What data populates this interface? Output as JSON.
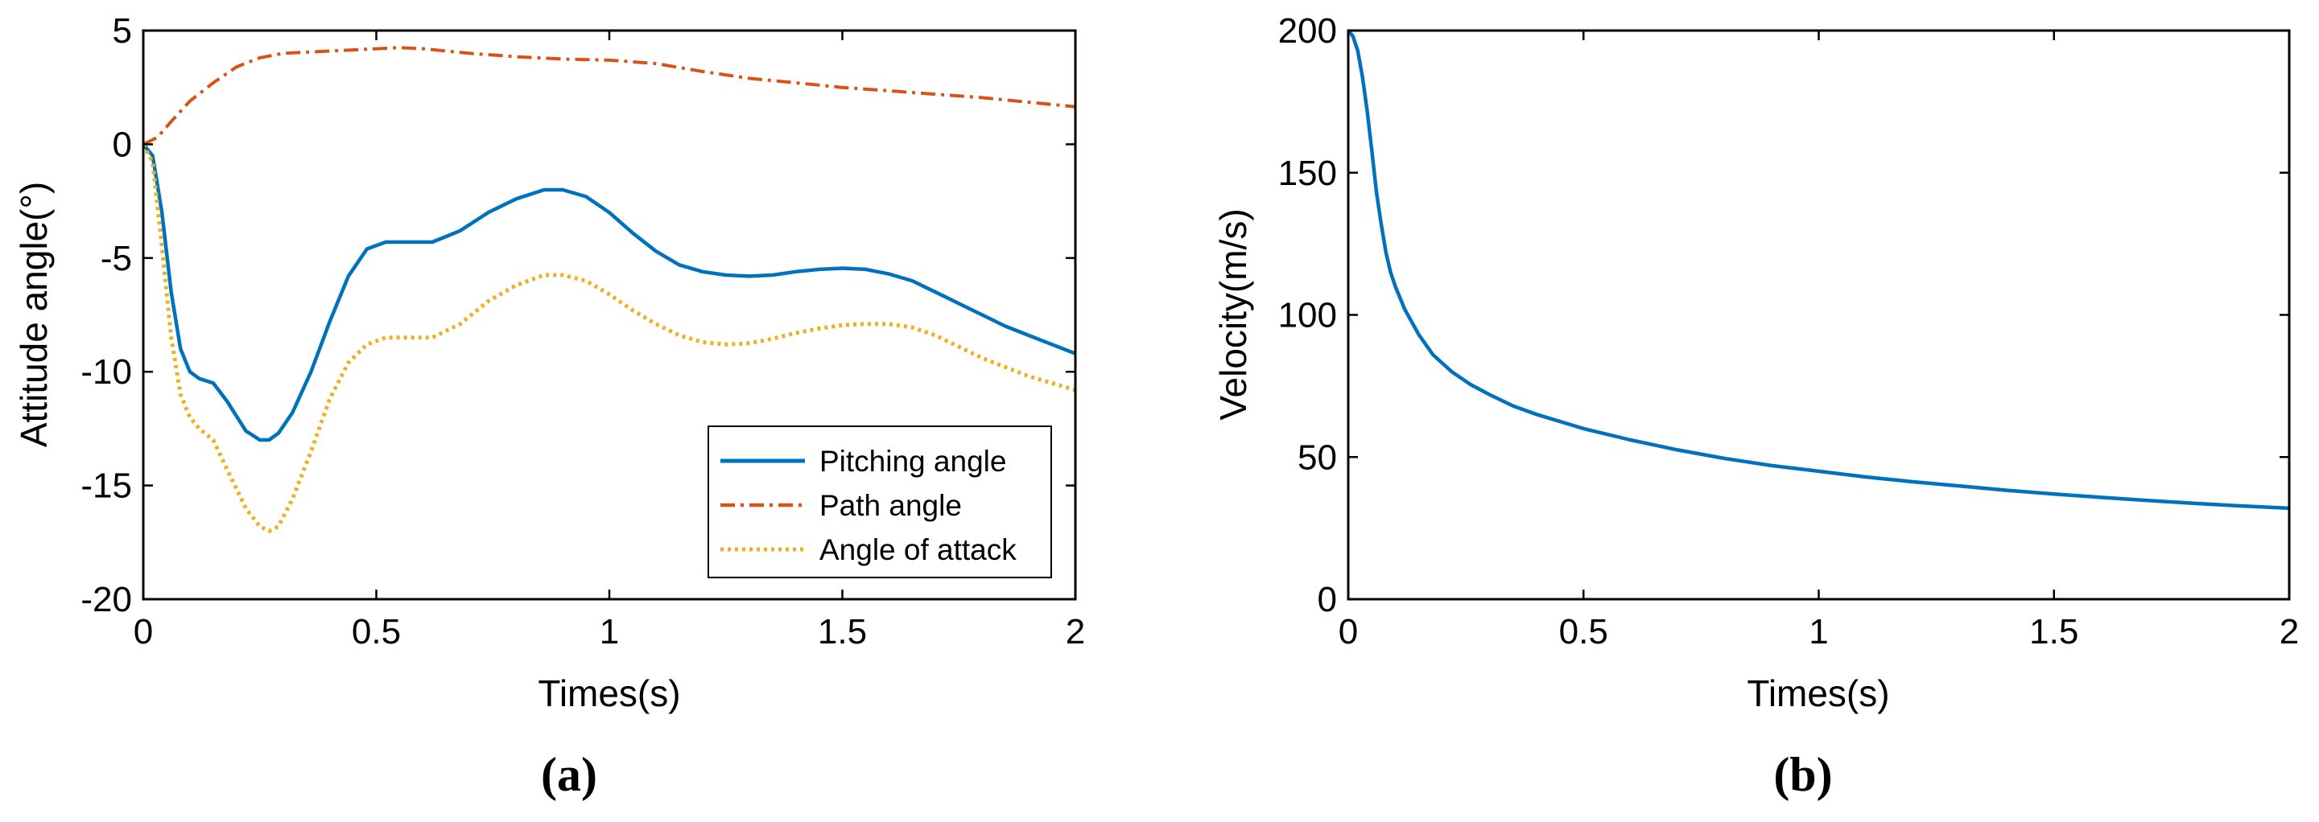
{
  "colors": {
    "pitching": "#0072BD",
    "path": "#D95319",
    "attack": "#EDB120",
    "velocity": "#0072BD",
    "axis": "#000000"
  },
  "chart_data": [
    {
      "type": "line",
      "caption": "(a)",
      "xlabel": "Times(s)",
      "ylabel": "Attitude angle(°)",
      "xlim": [
        0,
        2
      ],
      "ylim": [
        -20,
        5
      ],
      "xticks": [
        0,
        0.5,
        1,
        1.5,
        2
      ],
      "xtick_labels": [
        "0",
        "0.5",
        "1",
        "1.5",
        "2"
      ],
      "yticks": [
        -20,
        -15,
        -10,
        -5,
        0,
        5
      ],
      "ytick_labels": [
        "-20",
        "-15",
        "-10",
        "-5",
        "0",
        "5"
      ],
      "grid": false,
      "legend_position": "bottom-right",
      "series": [
        {
          "name": "Pitching angle",
          "style": "solid",
          "color_key": "pitching",
          "x": [
            0,
            0.02,
            0.04,
            0.06,
            0.08,
            0.1,
            0.12,
            0.15,
            0.18,
            0.22,
            0.25,
            0.27,
            0.29,
            0.32,
            0.36,
            0.4,
            0.44,
            0.48,
            0.52,
            0.56,
            0.62,
            0.68,
            0.74,
            0.8,
            0.86,
            0.9,
            0.95,
            1.0,
            1.05,
            1.1,
            1.15,
            1.2,
            1.25,
            1.3,
            1.35,
            1.4,
            1.45,
            1.5,
            1.55,
            1.6,
            1.65,
            1.7,
            1.75,
            1.8,
            1.85,
            1.9,
            1.95,
            2.0
          ],
          "y": [
            0,
            -0.5,
            -3.0,
            -6.5,
            -9.0,
            -10.0,
            -10.3,
            -10.5,
            -11.3,
            -12.6,
            -13.0,
            -13.0,
            -12.7,
            -11.8,
            -10.0,
            -7.8,
            -5.8,
            -4.6,
            -4.3,
            -4.3,
            -4.3,
            -3.8,
            -3.0,
            -2.4,
            -2.0,
            -2.0,
            -2.3,
            -3.0,
            -3.9,
            -4.7,
            -5.3,
            -5.6,
            -5.75,
            -5.8,
            -5.75,
            -5.6,
            -5.5,
            -5.45,
            -5.5,
            -5.7,
            -6.0,
            -6.5,
            -7.0,
            -7.5,
            -8.0,
            -8.4,
            -8.8,
            -9.2
          ]
        },
        {
          "name": "Path angle",
          "style": "dashdot",
          "color_key": "path",
          "x": [
            0,
            0.03,
            0.06,
            0.1,
            0.15,
            0.2,
            0.25,
            0.3,
            0.35,
            0.4,
            0.5,
            0.55,
            0.6,
            0.7,
            0.8,
            0.9,
            1.0,
            1.1,
            1.2,
            1.3,
            1.4,
            1.5,
            1.6,
            1.7,
            1.8,
            1.9,
            2.0
          ],
          "y": [
            0,
            0.3,
            1.0,
            1.9,
            2.7,
            3.4,
            3.8,
            4.0,
            4.05,
            4.1,
            4.2,
            4.25,
            4.2,
            4.0,
            3.85,
            3.75,
            3.7,
            3.55,
            3.2,
            2.9,
            2.7,
            2.5,
            2.35,
            2.2,
            2.05,
            1.85,
            1.65
          ]
        },
        {
          "name": "Angle of attack",
          "style": "dotted",
          "color_key": "attack",
          "x": [
            0,
            0.02,
            0.04,
            0.06,
            0.08,
            0.1,
            0.12,
            0.15,
            0.18,
            0.22,
            0.25,
            0.27,
            0.29,
            0.32,
            0.36,
            0.4,
            0.44,
            0.48,
            0.52,
            0.56,
            0.62,
            0.68,
            0.74,
            0.8,
            0.86,
            0.9,
            0.95,
            1.0,
            1.05,
            1.1,
            1.15,
            1.2,
            1.25,
            1.3,
            1.35,
            1.4,
            1.45,
            1.5,
            1.55,
            1.6,
            1.65,
            1.7,
            1.75,
            1.8,
            1.85,
            1.9,
            1.95,
            2.0
          ],
          "y": [
            0,
            -0.8,
            -4.5,
            -8.5,
            -11.0,
            -12.0,
            -12.5,
            -13.0,
            -14.3,
            -16.0,
            -16.8,
            -17.0,
            -16.8,
            -15.6,
            -13.5,
            -11.2,
            -9.6,
            -8.8,
            -8.5,
            -8.5,
            -8.5,
            -7.9,
            -6.9,
            -6.2,
            -5.75,
            -5.75,
            -6.0,
            -6.6,
            -7.3,
            -7.9,
            -8.4,
            -8.7,
            -8.8,
            -8.75,
            -8.55,
            -8.3,
            -8.1,
            -7.95,
            -7.9,
            -7.9,
            -8.05,
            -8.4,
            -8.9,
            -9.4,
            -9.8,
            -10.2,
            -10.5,
            -10.8
          ]
        }
      ]
    },
    {
      "type": "line",
      "caption": "(b)",
      "xlabel": "Times(s)",
      "ylabel": "Velocity(m/s)",
      "xlim": [
        0,
        2
      ],
      "ylim": [
        0,
        200
      ],
      "xticks": [
        0,
        0.5,
        1,
        1.5,
        2
      ],
      "xtick_labels": [
        "0",
        "0.5",
        "1",
        "1.5",
        "2"
      ],
      "yticks": [
        0,
        50,
        100,
        150,
        200
      ],
      "ytick_labels": [
        "0",
        "50",
        "100",
        "150",
        "200"
      ],
      "grid": false,
      "series": [
        {
          "name": "Velocity",
          "style": "solid",
          "color_key": "velocity",
          "x": [
            0,
            0.01,
            0.02,
            0.03,
            0.04,
            0.05,
            0.06,
            0.07,
            0.08,
            0.09,
            0.1,
            0.12,
            0.15,
            0.18,
            0.22,
            0.26,
            0.3,
            0.35,
            0.4,
            0.5,
            0.6,
            0.7,
            0.8,
            0.9,
            1.0,
            1.1,
            1.2,
            1.3,
            1.4,
            1.5,
            1.6,
            1.7,
            1.8,
            1.9,
            2.0
          ],
          "y": [
            200,
            198,
            193,
            184,
            172,
            158,
            143,
            132,
            122,
            115,
            110,
            102,
            93,
            86,
            80,
            75.5,
            72,
            68,
            65,
            60,
            56,
            52.5,
            49.5,
            47,
            45,
            43,
            41.3,
            39.8,
            38.3,
            37,
            35.8,
            34.7,
            33.7,
            32.8,
            32
          ]
        }
      ]
    }
  ]
}
